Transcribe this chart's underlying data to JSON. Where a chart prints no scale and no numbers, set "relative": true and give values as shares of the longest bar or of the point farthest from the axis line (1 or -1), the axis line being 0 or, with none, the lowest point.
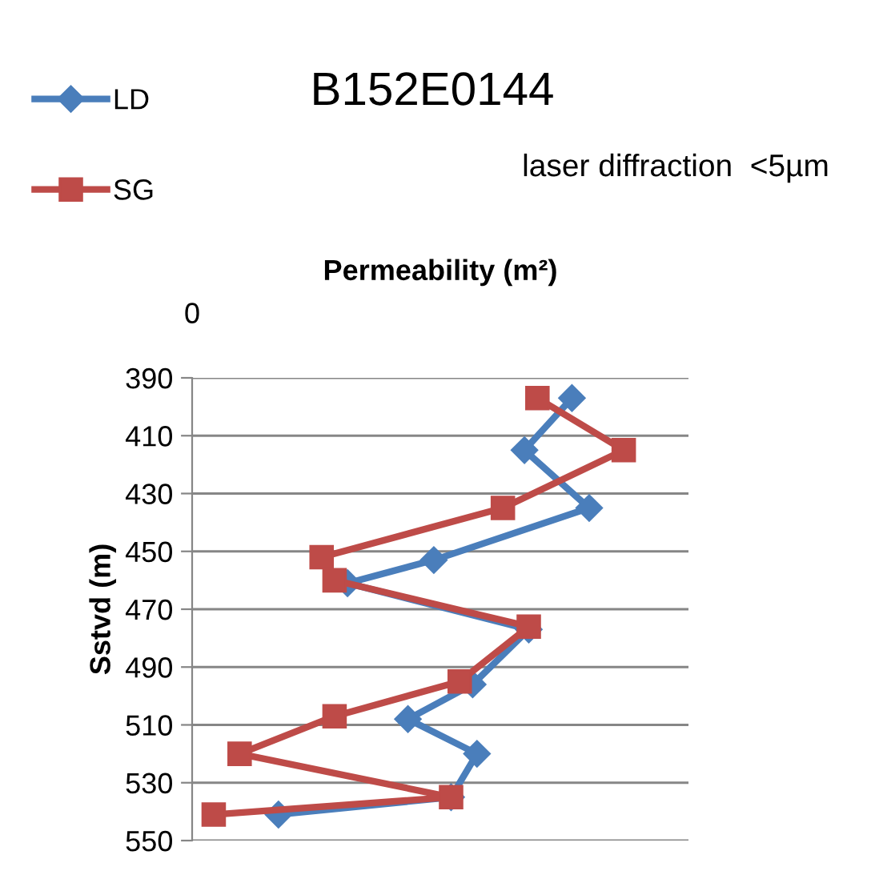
{
  "chart_data": {
    "type": "line",
    "title": "B152E0144",
    "subtitle": "laser diffraction  <5µm",
    "xlabel": "Permeability (m²)",
    "ylabel": "Sstvd (m)",
    "relative": true,
    "orientation": "horizontal",
    "series": [
      {
        "name": "LD",
        "color": "#4a7ebb",
        "marker": "diamond",
        "x": [
          397,
          415,
          435,
          453,
          461,
          477,
          496,
          508,
          520,
          535,
          541
        ],
        "values": [
          0.88,
          0.77,
          0.92,
          0.56,
          0.36,
          0.78,
          0.65,
          0.5,
          0.66,
          0.6,
          0.2
        ]
      },
      {
        "name": "SG",
        "color": "#be4b48",
        "marker": "square",
        "x": [
          397,
          415,
          435,
          452,
          460,
          476,
          495,
          507,
          520,
          535,
          541
        ],
        "values": [
          0.8,
          1.0,
          0.72,
          0.3,
          0.33,
          0.78,
          0.62,
          0.33,
          0.11,
          0.6,
          0.05
        ]
      }
    ],
    "annotations": [
      "0"
    ],
    "ylim": [
      550,
      390
    ],
    "yticks": [
      390,
      410,
      430,
      450,
      470,
      490,
      510,
      530,
      550
    ],
    "grid": "y",
    "legend": "top left",
    "line_style": "solid"
  }
}
